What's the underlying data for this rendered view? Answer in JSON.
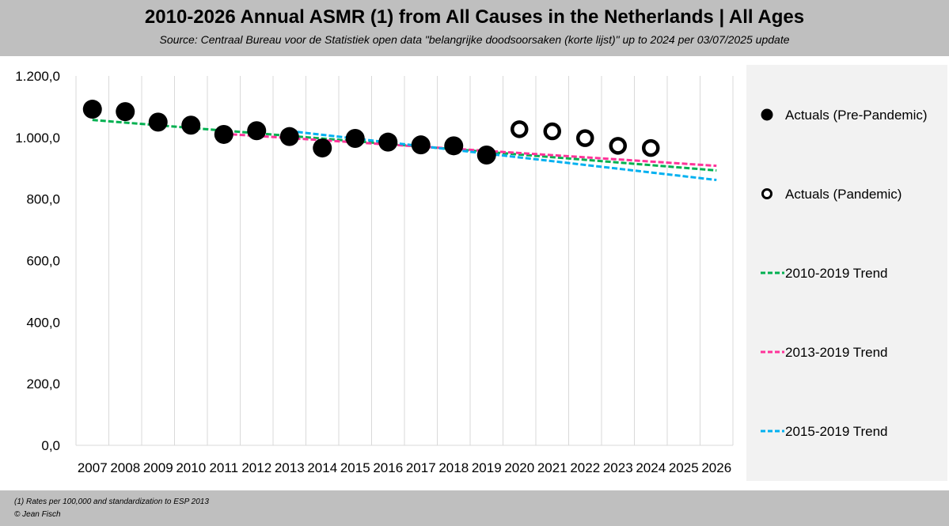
{
  "header": {
    "title": "2010-2026 Annual ASMR (1) from All Causes in the Netherlands | All Ages",
    "subtitle": "Source: Centraal Bureau voor de Statistiek open data \"belangrijke doodsoorsaken (korte lijst)\" up to 2024 per 03/07/2025 update"
  },
  "footer": {
    "note1": "(1) Rates per 100,000 and standardization to ESP 2013",
    "note2": "© Jean Fisch"
  },
  "legend": {
    "items": [
      {
        "label": "Actuals (Pre-Pandemic)",
        "kind": "filled-dot"
      },
      {
        "label": "Actuals (Pandemic)",
        "kind": "hollow-dot"
      },
      {
        "label": "2010-2019 Trend",
        "kind": "dash",
        "color": "#00b050"
      },
      {
        "label": "2013-2019 Trend",
        "kind": "dash",
        "color": "#ff3399"
      },
      {
        "label": "2015-2019 Trend",
        "kind": "dash",
        "color": "#00b0f0"
      }
    ]
  },
  "chart_data": {
    "type": "scatter",
    "title": "2010-2026 Annual ASMR (1) from All Causes in the Netherlands | All Ages",
    "xlabel": "",
    "ylabel": "",
    "categories": [
      "2007",
      "2008",
      "2009",
      "2010",
      "2011",
      "2012",
      "2013",
      "2014",
      "2015",
      "2016",
      "2017",
      "2018",
      "2019",
      "2020",
      "2021",
      "2022",
      "2023",
      "2024",
      "2025",
      "2026"
    ],
    "ylim": [
      0,
      1200
    ],
    "y_ticks": [
      "0,0",
      "200,0",
      "400,0",
      "600,0",
      "800,0",
      "1.000,0",
      "1.200,0"
    ],
    "y_tick_values": [
      0,
      200,
      400,
      600,
      800,
      1000,
      1200
    ],
    "grid": "vertical",
    "series": [
      {
        "name": "Actuals (Pre-Pandemic)",
        "marker": "filled",
        "x": [
          "2007",
          "2008",
          "2009",
          "2010",
          "2011",
          "2012",
          "2013",
          "2014",
          "2015",
          "2016",
          "2017",
          "2018",
          "2019"
        ],
        "values": [
          1092,
          1084,
          1050,
          1040,
          1010,
          1022,
          1003,
          966,
          997,
          985,
          976,
          973,
          943
        ]
      },
      {
        "name": "Actuals (Pandemic)",
        "marker": "hollow",
        "x": [
          "2020",
          "2021",
          "2022",
          "2023",
          "2024"
        ],
        "values": [
          1027,
          1020,
          998,
          973,
          966
        ]
      },
      {
        "name": "2010-2019 Trend",
        "style": "dashed",
        "color": "#00b050",
        "x_range": [
          "2007",
          "2026"
        ],
        "values": [
          1057,
          893
        ]
      },
      {
        "name": "2013-2019 Trend",
        "style": "dashed",
        "color": "#ff3399",
        "x_range": [
          "2011",
          "2026"
        ],
        "values": [
          1012,
          908
        ]
      },
      {
        "name": "2015-2019 Trend",
        "style": "dashed",
        "color": "#00b0f0",
        "x_range": [
          "2013",
          "2026"
        ],
        "values": [
          1021,
          862
        ]
      }
    ]
  }
}
